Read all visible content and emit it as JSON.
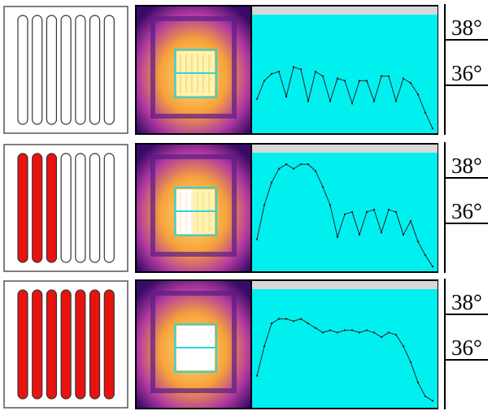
{
  "rows": [
    {
      "heated": [
        false,
        false,
        false,
        false,
        false,
        false,
        false
      ],
      "scale": {
        "ticks": [
          {
            "value": 38,
            "label": "38°"
          },
          {
            "value": 36,
            "label": "36°"
          }
        ]
      },
      "profile": [
        35.4,
        36.2,
        36.5,
        36.6,
        35.5,
        36.8,
        36.7,
        35.3,
        36.6,
        36.4,
        35.3,
        36.3,
        36.2,
        35.2,
        36.2,
        36.2,
        35.3,
        36.4,
        36.4,
        35.3,
        36.3,
        36.1,
        35.6,
        34.8,
        34.1
      ]
    },
    {
      "heated": [
        true,
        true,
        true,
        false,
        false,
        false,
        false
      ],
      "scale": {
        "ticks": [
          {
            "value": 38,
            "label": "38°"
          },
          {
            "value": 36,
            "label": "36°"
          }
        ]
      },
      "profile": [
        35.3,
        36.8,
        37.8,
        38.4,
        38.6,
        38.4,
        38.6,
        38.6,
        38.3,
        37.6,
        36.8,
        35.4,
        36.4,
        36.5,
        35.5,
        36.5,
        36.6,
        35.6,
        36.6,
        36.5,
        35.5,
        36.1,
        35.2,
        34.6,
        34.1
      ]
    },
    {
      "heated": [
        true,
        true,
        true,
        true,
        true,
        true,
        true
      ],
      "scale": {
        "ticks": [
          {
            "value": 38,
            "label": "38°"
          },
          {
            "value": 36,
            "label": "36°"
          }
        ]
      },
      "profile": [
        35.3,
        36.6,
        37.6,
        37.8,
        37.8,
        37.7,
        37.8,
        37.6,
        37.4,
        37.2,
        37.3,
        37.2,
        37.3,
        37.3,
        37.2,
        37.3,
        37.2,
        37.0,
        37.2,
        37.1,
        36.6,
        35.9,
        35.0,
        34.4,
        34.2
      ]
    }
  ]
}
